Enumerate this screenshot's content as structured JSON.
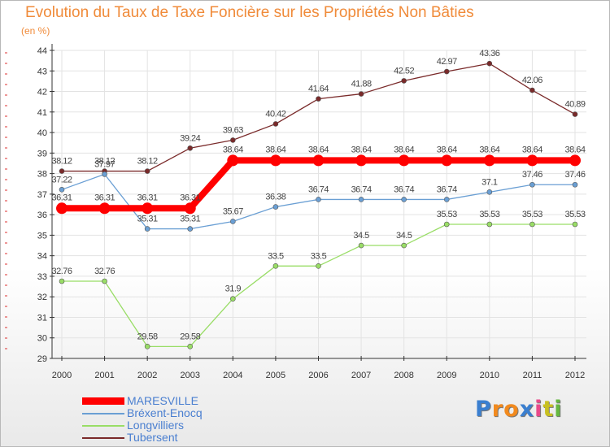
{
  "chart_data": {
    "type": "line",
    "title": "Evolution du Taux de Taxe Foncière sur les Propriétés Non Bâties",
    "subtitle": "(en %)",
    "x": [
      "2000",
      "2001",
      "2002",
      "2003",
      "2004",
      "2005",
      "2006",
      "2007",
      "2008",
      "2009",
      "2010",
      "2011",
      "2012"
    ],
    "ylim": [
      29,
      44
    ],
    "yticks": [
      29,
      30,
      31,
      32,
      33,
      34,
      35,
      36,
      37,
      38,
      39,
      40,
      41,
      42,
      43,
      44
    ],
    "grid": true,
    "series": [
      {
        "name": "Tubersent",
        "color": "#7a2a2a",
        "values": [
          38.12,
          38.12,
          38.12,
          39.24,
          39.63,
          40.42,
          41.64,
          41.88,
          42.52,
          42.97,
          43.36,
          42.06,
          40.89
        ],
        "labels": [
          "38.12",
          "38.12",
          "38.12",
          "39.24",
          "39.63",
          "40.42",
          "41.64",
          "41.88",
          "42.52",
          "42.97",
          "43.36",
          "42.06",
          "40.89"
        ]
      },
      {
        "name": "Longvilliers",
        "color": "#99dd66",
        "values": [
          32.76,
          32.76,
          29.58,
          29.58,
          31.9,
          33.5,
          33.5,
          34.5,
          34.5,
          35.53,
          35.53,
          35.53,
          35.53
        ],
        "labels": [
          "32.76",
          "32.76",
          "29.58",
          "29.58",
          "31.9",
          "33.5",
          "33.5",
          "34.5",
          "34.5",
          "35.53",
          "35.53",
          "35.53",
          "35.53"
        ]
      },
      {
        "name": "Bréxent-Enocq",
        "color": "#6a9fd4",
        "values": [
          37.22,
          37.97,
          35.31,
          35.31,
          35.67,
          36.38,
          36.74,
          36.74,
          36.74,
          36.74,
          37.1,
          37.46,
          37.46
        ],
        "labels": [
          "37.22",
          "37.97",
          "35.31",
          "35.31",
          "35.67",
          "36.38",
          "36.74",
          "36.74",
          "36.74",
          "36.74",
          "37.1",
          "37.46",
          "37.46"
        ]
      },
      {
        "name": "MARESVILLE",
        "color": "#ff0000",
        "values": [
          36.31,
          36.31,
          36.31,
          36.31,
          38.64,
          38.64,
          38.64,
          38.64,
          38.64,
          38.64,
          38.64,
          38.64,
          38.64
        ],
        "labels": [
          "36.31",
          "36.31",
          "36.31",
          "36.31",
          "38.64",
          "38.64",
          "38.64",
          "38.64",
          "38.64",
          "38.64",
          "38.64",
          "38.64",
          "38.64"
        ]
      }
    ]
  },
  "legend": [
    {
      "name": "MARESVILLE",
      "color": "#ff0000",
      "thick": true
    },
    {
      "name": "Bréxent-Enocq",
      "color": "#6a9fd4",
      "thick": false
    },
    {
      "name": "Longvilliers",
      "color": "#99dd66",
      "thick": false
    },
    {
      "name": "Tubersent",
      "color": "#7a2a2a",
      "thick": false
    }
  ],
  "logo": {
    "letters": [
      "P",
      "r",
      "o",
      "x",
      "i",
      "t",
      "i"
    ],
    "colors": [
      "#3a7fd0",
      "#f28a1e",
      "#f28a1e",
      "#3a7fd0",
      "#e84a8a",
      "#c8c020",
      "#66b840"
    ]
  }
}
